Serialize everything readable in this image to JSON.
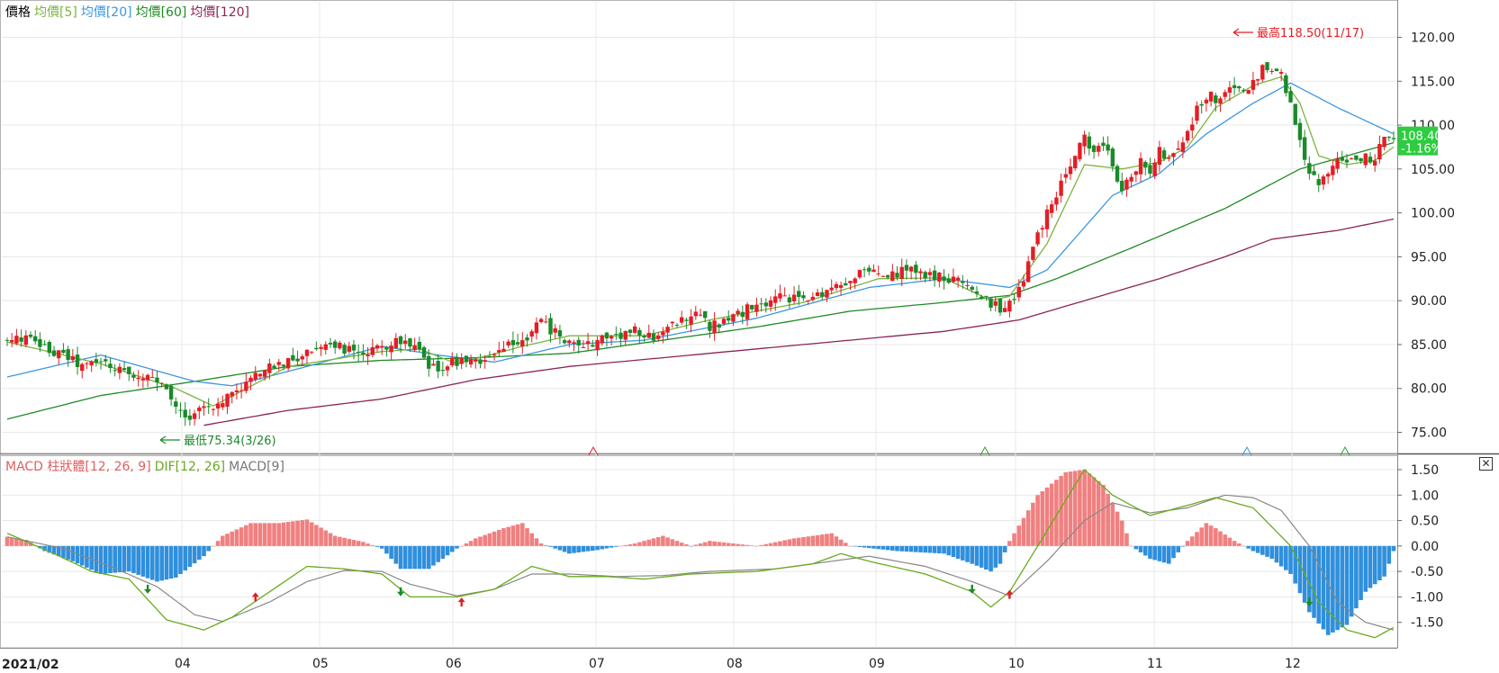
{
  "price_panel": {
    "legend": {
      "price": "價格",
      "ma5": "均價[5]",
      "ma20": "均價[20]",
      "ma60": "均價[60]",
      "ma120": "均價[120]"
    },
    "high_note": "最高118.50(11/17)",
    "low_note": "最低75.34(3/26)",
    "last_price": "108.40",
    "last_change": "-1.16%"
  },
  "macd_panel": {
    "legend": {
      "hist": "MACD 柱狀體[12, 26, 9]",
      "dif": "DIF[12, 26]",
      "macd": "MACD[9]"
    },
    "close_label": "✕"
  },
  "colors": {
    "up": "#e31e25",
    "down": "#1a8a2a",
    "ma5": "#7cb342",
    "ma20": "#3d97e0",
    "ma60": "#1f8b24",
    "ma120": "#8b2456",
    "hist_pos": "#f08080",
    "hist_neg": "#2f8fdc",
    "dif": "#6aaa1e",
    "macd": "#888888",
    "badge": "#2ecc40"
  },
  "chart_data": [
    {
      "type": "candlestick",
      "x_axis": {
        "start_label": "2021/02",
        "month_labels": [
          "04",
          "05",
          "06",
          "07",
          "08",
          "09",
          "10",
          "11",
          "12"
        ]
      },
      "ylim": [
        73,
        122
      ],
      "yticks": [
        "120.00",
        "115.00",
        "110.00",
        "105.00",
        "100.00",
        "95.00",
        "90.00",
        "85.00",
        "80.00",
        "75.00"
      ],
      "high": {
        "value": 118.5,
        "date": "11/17"
      },
      "low": {
        "value": 75.34,
        "date": "3/26"
      },
      "last": {
        "value": 108.4,
        "change_pct": -1.16
      },
      "close_anchors": [
        [
          0,
          85.3
        ],
        [
          4,
          85.8
        ],
        [
          8,
          84.5
        ],
        [
          12,
          83.8
        ],
        [
          16,
          82.5
        ],
        [
          20,
          83.0
        ],
        [
          24,
          82.2
        ],
        [
          28,
          81.5
        ],
        [
          32,
          80.8
        ],
        [
          36,
          78.0
        ],
        [
          38,
          76.5
        ],
        [
          40,
          77.5
        ],
        [
          44,
          78.0
        ],
        [
          48,
          79.5
        ],
        [
          52,
          81.0
        ],
        [
          56,
          82.5
        ],
        [
          60,
          83.0
        ],
        [
          64,
          84.0
        ],
        [
          68,
          85.5
        ],
        [
          72,
          84.5
        ],
        [
          76,
          83.5
        ],
        [
          80,
          84.8
        ],
        [
          84,
          85.5
        ],
        [
          88,
          84.0
        ],
        [
          90,
          82.0
        ],
        [
          94,
          82.8
        ],
        [
          98,
          83.5
        ],
        [
          102,
          83.0
        ],
        [
          106,
          84.5
        ],
        [
          110,
          85.5
        ],
        [
          114,
          87.5
        ],
        [
          118,
          86.0
        ],
        [
          122,
          84.5
        ],
        [
          126,
          85.5
        ],
        [
          130,
          86.0
        ],
        [
          134,
          86.5
        ],
        [
          136,
          85.5
        ],
        [
          140,
          86.5
        ],
        [
          144,
          88.0
        ],
        [
          148,
          88.5
        ],
        [
          150,
          87.0
        ],
        [
          154,
          88.0
        ],
        [
          158,
          89.0
        ],
        [
          162,
          89.5
        ],
        [
          166,
          90.5
        ],
        [
          170,
          90.0
        ],
        [
          174,
          91.0
        ],
        [
          178,
          92.0
        ],
        [
          182,
          93.0
        ],
        [
          184,
          93.5
        ],
        [
          188,
          92.5
        ],
        [
          192,
          93.5
        ],
        [
          196,
          93.0
        ],
        [
          200,
          92.5
        ],
        [
          204,
          92.0
        ],
        [
          208,
          90.5
        ],
        [
          212,
          89.0
        ],
        [
          214,
          89.5
        ],
        [
          216,
          91.0
        ],
        [
          218,
          94.5
        ],
        [
          220,
          97.5
        ],
        [
          222,
          100.0
        ],
        [
          224,
          102.0
        ],
        [
          226,
          104.5
        ],
        [
          228,
          106.5
        ],
        [
          230,
          108.5
        ],
        [
          232,
          106.5
        ],
        [
          234,
          108.0
        ],
        [
          236,
          105.0
        ],
        [
          238,
          103.0
        ],
        [
          240,
          104.5
        ],
        [
          242,
          106.0
        ],
        [
          244,
          105.0
        ],
        [
          246,
          107.0
        ],
        [
          248,
          106.0
        ],
        [
          250,
          107.5
        ],
        [
          252,
          109.0
        ],
        [
          254,
          112.0
        ],
        [
          256,
          113.5
        ],
        [
          258,
          113.0
        ],
        [
          260,
          113.5
        ],
        [
          262,
          114.5
        ],
        [
          264,
          114.0
        ],
        [
          266,
          115.0
        ],
        [
          268,
          116.5
        ],
        [
          270,
          116.0
        ],
        [
          272,
          115.5
        ],
        [
          274,
          112.5
        ],
        [
          276,
          108.0
        ],
        [
          278,
          104.0
        ],
        [
          280,
          103.5
        ],
        [
          282,
          105.0
        ],
        [
          284,
          106.5
        ],
        [
          286,
          106.0
        ],
        [
          288,
          105.5
        ],
        [
          290,
          106.2
        ],
        [
          292,
          106.0
        ],
        [
          294,
          108.9
        ],
        [
          296,
          108.4
        ]
      ],
      "ma5": [
        [
          0,
          85.3
        ],
        [
          20,
          82.8
        ],
        [
          36,
          80.0
        ],
        [
          44,
          78.0
        ],
        [
          60,
          82.5
        ],
        [
          80,
          84.2
        ],
        [
          88,
          84.5
        ],
        [
          96,
          82.8
        ],
        [
          110,
          84.8
        ],
        [
          120,
          86.0
        ],
        [
          136,
          86.0
        ],
        [
          150,
          87.8
        ],
        [
          170,
          89.8
        ],
        [
          186,
          92.5
        ],
        [
          200,
          92.6
        ],
        [
          210,
          90.0
        ],
        [
          214,
          90.5
        ],
        [
          222,
          96.5
        ],
        [
          230,
          105.5
        ],
        [
          238,
          105.0
        ],
        [
          246,
          105.8
        ],
        [
          252,
          107.5
        ],
        [
          258,
          112.0
        ],
        [
          266,
          114.5
        ],
        [
          272,
          115.5
        ],
        [
          276,
          112.5
        ],
        [
          280,
          106.5
        ],
        [
          286,
          105.5
        ],
        [
          292,
          106.0
        ],
        [
          296,
          107.5
        ]
      ],
      "ma20": [
        [
          0,
          81.3
        ],
        [
          20,
          83.8
        ],
        [
          40,
          80.8
        ],
        [
          48,
          80.3
        ],
        [
          64,
          82.5
        ],
        [
          80,
          84.8
        ],
        [
          92,
          83.8
        ],
        [
          104,
          83.0
        ],
        [
          120,
          85.0
        ],
        [
          136,
          85.5
        ],
        [
          160,
          88.0
        ],
        [
          184,
          91.5
        ],
        [
          200,
          92.5
        ],
        [
          214,
          91.5
        ],
        [
          222,
          93.5
        ],
        [
          236,
          102.0
        ],
        [
          246,
          104.5
        ],
        [
          256,
          109.0
        ],
        [
          266,
          112.5
        ],
        [
          274,
          114.8
        ],
        [
          284,
          112.0
        ],
        [
          296,
          109.0
        ]
      ],
      "ma60": [
        [
          0,
          76.5
        ],
        [
          20,
          79.2
        ],
        [
          40,
          80.8
        ],
        [
          60,
          82.5
        ],
        [
          80,
          83.2
        ],
        [
          100,
          83.5
        ],
        [
          120,
          84.0
        ],
        [
          140,
          85.5
        ],
        [
          160,
          87.0
        ],
        [
          180,
          88.8
        ],
        [
          200,
          89.8
        ],
        [
          214,
          90.6
        ],
        [
          224,
          92.5
        ],
        [
          240,
          96.0
        ],
        [
          260,
          100.5
        ],
        [
          276,
          105.0
        ],
        [
          296,
          108.0
        ]
      ],
      "ma120": [
        [
          42,
          75.8
        ],
        [
          60,
          77.5
        ],
        [
          80,
          78.8
        ],
        [
          100,
          81.0
        ],
        [
          120,
          82.5
        ],
        [
          140,
          83.5
        ],
        [
          160,
          84.5
        ],
        [
          180,
          85.5
        ],
        [
          200,
          86.5
        ],
        [
          216,
          87.8
        ],
        [
          230,
          90.0
        ],
        [
          246,
          92.5
        ],
        [
          260,
          95.0
        ],
        [
          270,
          97.0
        ],
        [
          284,
          98.0
        ],
        [
          296,
          99.3
        ]
      ]
    },
    {
      "type": "bar+line",
      "title": "MACD 柱狀體[12, 26, 9]",
      "ylim": [
        -2.0,
        1.8
      ],
      "yticks": [
        "1.50",
        "1.00",
        "0.50",
        "0.00",
        "-0.50",
        "-1.00",
        "-1.50"
      ],
      "histogram_anchors": [
        [
          0,
          0.18
        ],
        [
          4,
          0.12
        ],
        [
          8,
          -0.1
        ],
        [
          14,
          -0.3
        ],
        [
          20,
          -0.55
        ],
        [
          26,
          -0.5
        ],
        [
          32,
          -0.7
        ],
        [
          36,
          -0.62
        ],
        [
          42,
          -0.2
        ],
        [
          46,
          0.2
        ],
        [
          52,
          0.45
        ],
        [
          58,
          0.45
        ],
        [
          64,
          0.52
        ],
        [
          70,
          0.2
        ],
        [
          76,
          0.08
        ],
        [
          80,
          -0.05
        ],
        [
          84,
          -0.45
        ],
        [
          90,
          -0.45
        ],
        [
          96,
          -0.05
        ],
        [
          100,
          0.15
        ],
        [
          106,
          0.35
        ],
        [
          110,
          0.45
        ],
        [
          114,
          0.05
        ],
        [
          120,
          -0.15
        ],
        [
          126,
          -0.08
        ],
        [
          134,
          0.05
        ],
        [
          140,
          0.2
        ],
        [
          146,
          0.0
        ],
        [
          150,
          0.1
        ],
        [
          160,
          0.0
        ],
        [
          168,
          0.15
        ],
        [
          176,
          0.25
        ],
        [
          180,
          0.0
        ],
        [
          190,
          -0.1
        ],
        [
          200,
          -0.15
        ],
        [
          206,
          -0.35
        ],
        [
          210,
          -0.5
        ],
        [
          212,
          -0.35
        ],
        [
          214,
          0.1
        ],
        [
          220,
          1.0
        ],
        [
          226,
          1.45
        ],
        [
          230,
          1.5
        ],
        [
          234,
          1.2
        ],
        [
          238,
          0.5
        ],
        [
          240,
          0.0
        ],
        [
          244,
          -0.25
        ],
        [
          248,
          -0.35
        ],
        [
          252,
          0.1
        ],
        [
          256,
          0.45
        ],
        [
          258,
          0.35
        ],
        [
          262,
          0.1
        ],
        [
          266,
          -0.1
        ],
        [
          270,
          -0.25
        ],
        [
          274,
          -0.55
        ],
        [
          278,
          -1.3
        ],
        [
          282,
          -1.75
        ],
        [
          286,
          -1.55
        ],
        [
          290,
          -0.9
        ],
        [
          294,
          -0.6
        ],
        [
          296,
          -0.1
        ]
      ],
      "dif": [
        [
          0,
          0.25
        ],
        [
          10,
          -0.15
        ],
        [
          18,
          -0.5
        ],
        [
          26,
          -0.65
        ],
        [
          34,
          -1.45
        ],
        [
          42,
          -1.65
        ],
        [
          48,
          -1.4
        ],
        [
          56,
          -0.9
        ],
        [
          64,
          -0.4
        ],
        [
          72,
          -0.45
        ],
        [
          80,
          -0.55
        ],
        [
          86,
          -1.0
        ],
        [
          96,
          -1.0
        ],
        [
          104,
          -0.85
        ],
        [
          112,
          -0.4
        ],
        [
          120,
          -0.6
        ],
        [
          128,
          -0.6
        ],
        [
          136,
          -0.65
        ],
        [
          146,
          -0.55
        ],
        [
          160,
          -0.5
        ],
        [
          172,
          -0.35
        ],
        [
          178,
          -0.15
        ],
        [
          184,
          -0.3
        ],
        [
          196,
          -0.55
        ],
        [
          206,
          -0.9
        ],
        [
          210,
          -1.2
        ],
        [
          214,
          -0.9
        ],
        [
          222,
          0.3
        ],
        [
          230,
          1.5
        ],
        [
          236,
          1.0
        ],
        [
          244,
          0.6
        ],
        [
          252,
          0.8
        ],
        [
          258,
          0.95
        ],
        [
          266,
          0.75
        ],
        [
          274,
          0.0
        ],
        [
          280,
          -1.1
        ],
        [
          286,
          -1.65
        ],
        [
          292,
          -1.8
        ],
        [
          296,
          -1.6
        ]
      ],
      "macd_line": [
        [
          0,
          0.18
        ],
        [
          12,
          -0.05
        ],
        [
          22,
          -0.4
        ],
        [
          32,
          -0.8
        ],
        [
          40,
          -1.35
        ],
        [
          46,
          -1.48
        ],
        [
          56,
          -1.1
        ],
        [
          64,
          -0.7
        ],
        [
          72,
          -0.48
        ],
        [
          80,
          -0.5
        ],
        [
          86,
          -0.75
        ],
        [
          96,
          -0.98
        ],
        [
          104,
          -0.85
        ],
        [
          112,
          -0.55
        ],
        [
          120,
          -0.55
        ],
        [
          130,
          -0.6
        ],
        [
          140,
          -0.58
        ],
        [
          150,
          -0.5
        ],
        [
          164,
          -0.45
        ],
        [
          176,
          -0.3
        ],
        [
          184,
          -0.2
        ],
        [
          196,
          -0.4
        ],
        [
          206,
          -0.7
        ],
        [
          214,
          -0.98
        ],
        [
          222,
          -0.3
        ],
        [
          230,
          0.5
        ],
        [
          236,
          0.85
        ],
        [
          244,
          0.65
        ],
        [
          252,
          0.75
        ],
        [
          260,
          1.0
        ],
        [
          266,
          0.95
        ],
        [
          272,
          0.7
        ],
        [
          278,
          0.0
        ],
        [
          284,
          -1.1
        ],
        [
          290,
          -1.5
        ],
        [
          296,
          -1.65
        ]
      ],
      "signals": [
        [
          30,
          -0.85,
          "down"
        ],
        [
          53,
          -1.0,
          "up"
        ],
        [
          84,
          -0.9,
          "down"
        ],
        [
          97,
          -1.1,
          "up"
        ],
        [
          206,
          -0.85,
          "down"
        ],
        [
          214,
          -0.95,
          "up"
        ],
        [
          278,
          -1.1,
          "down"
        ]
      ]
    }
  ]
}
